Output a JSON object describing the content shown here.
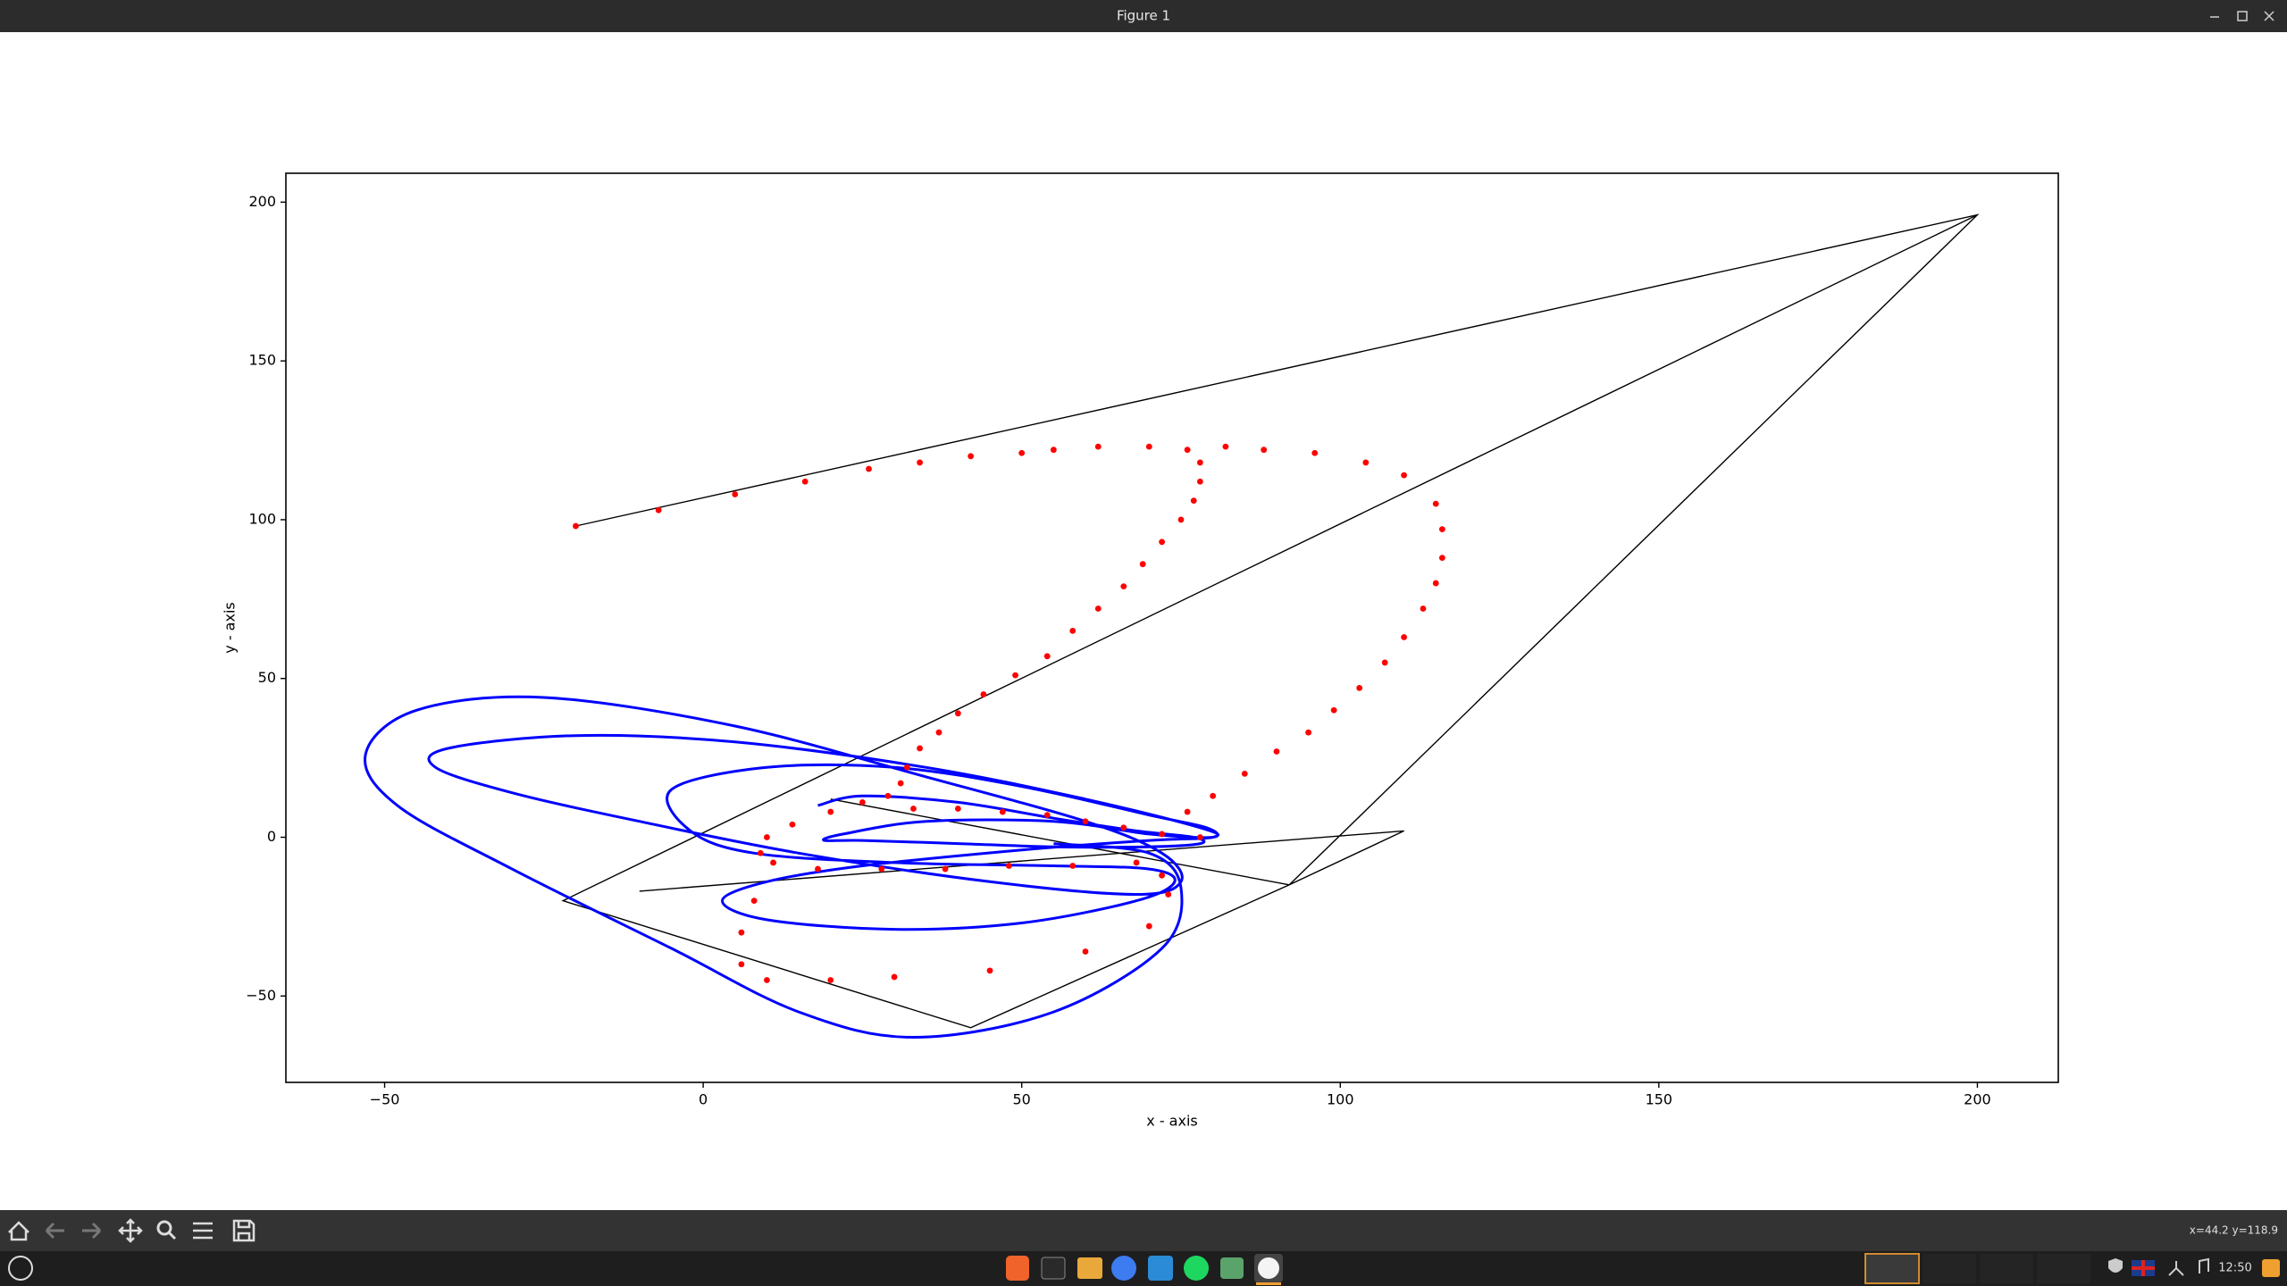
{
  "window": {
    "title": "Figure 1"
  },
  "status": {
    "coordinates": "x=44.2 y=118.9"
  },
  "taskbar": {
    "clock": "12:50"
  },
  "chart_data": {
    "type": "line",
    "xlabel": "x - axis",
    "ylabel": "y - axis",
    "xlim": [
      -65.5,
      212.7
    ],
    "ylim": [
      -77.2,
      209.1
    ],
    "xticks": [
      {
        "value": -50,
        "label": "−50"
      },
      0,
      50,
      100,
      150,
      200
    ],
    "yticks": [
      {
        "value": -50,
        "label": "−50"
      },
      0,
      50,
      100,
      150,
      200
    ],
    "series": [
      {
        "type": "line",
        "color": "#000000",
        "x": [
          -20,
          200,
          92,
          42,
          -22,
          200,
          null,
          -10,
          110,
          92,
          null,
          20,
          92
        ],
        "y": [
          98,
          196,
          -15,
          -60,
          -20,
          196,
          null,
          -17,
          2,
          -15,
          null,
          12,
          -15
        ]
      },
      {
        "type": "curve",
        "color": "#0000ff",
        "x": [
          18,
          25,
          40,
          55,
          68,
          77,
          78,
          70,
          55,
          40,
          25,
          19,
          22,
          35,
          55,
          70,
          80,
          79,
          70,
          50,
          30,
          10,
          -5,
          -2,
          8,
          30,
          55,
          70,
          74,
          68,
          50,
          30,
          10,
          3,
          10,
          25,
          50,
          70,
          80,
          78,
          60,
          35,
          5,
          -20,
          -40,
          -42,
          -30,
          -10,
          15,
          45,
          68,
          75,
          72,
          60,
          35,
          5,
          -25,
          -45,
          -53,
          -48,
          -30,
          -5,
          15,
          33,
          55,
          72,
          75,
          70,
          55
        ],
        "y": [
          10,
          13,
          11,
          6,
          2,
          0,
          -2,
          -3,
          -3,
          -2,
          -1,
          -1,
          1,
          5,
          5,
          1,
          0,
          3,
          7,
          16,
          22,
          22,
          15,
          2,
          -5,
          -8,
          -9,
          -10,
          -14,
          -20,
          -27,
          -29,
          -26,
          -20,
          -14,
          -9,
          -4,
          -1,
          0,
          3,
          12,
          22,
          30,
          32,
          28,
          22,
          14,
          5,
          -5,
          -14,
          -18,
          -14,
          -5,
          5,
          19,
          35,
          44,
          40,
          26,
          10,
          -10,
          -35,
          -55,
          -63,
          -55,
          -35,
          -16,
          -5,
          -2
        ]
      },
      {
        "type": "scatter",
        "color": "#ff0000",
        "x": [
          -20,
          -7,
          5,
          16,
          26,
          34,
          42,
          50,
          55,
          62,
          70,
          76,
          78,
          78,
          77,
          75,
          72,
          69,
          66,
          62,
          58,
          54,
          49,
          44,
          40,
          37,
          34,
          32,
          31,
          29,
          25,
          20,
          14,
          10,
          82,
          88,
          96,
          104,
          110,
          115,
          116,
          116,
          115,
          113,
          110,
          107,
          103,
          99,
          95,
          90,
          85,
          80,
          76,
          33,
          40,
          47,
          54,
          60,
          66,
          72,
          78,
          68,
          58,
          48,
          38,
          28,
          18,
          11,
          9,
          8,
          6,
          6,
          10,
          20,
          30,
          45,
          60,
          70,
          73,
          72
        ],
        "y": [
          98,
          103,
          108,
          112,
          116,
          118,
          120,
          121,
          122,
          123,
          123,
          122,
          118,
          112,
          106,
          100,
          93,
          86,
          79,
          72,
          65,
          57,
          51,
          45,
          39,
          33,
          28,
          22,
          17,
          13,
          11,
          8,
          4,
          0,
          123,
          122,
          121,
          118,
          114,
          105,
          97,
          88,
          80,
          72,
          63,
          55,
          47,
          40,
          33,
          27,
          20,
          13,
          8,
          9,
          9,
          8,
          7,
          5,
          3,
          1,
          0,
          -8,
          -9,
          -9,
          -10,
          -10,
          -10,
          -8,
          -5,
          -20,
          -30,
          -40,
          -45,
          -45,
          -44,
          -42,
          -36,
          -28,
          -18,
          -12
        ]
      }
    ]
  }
}
